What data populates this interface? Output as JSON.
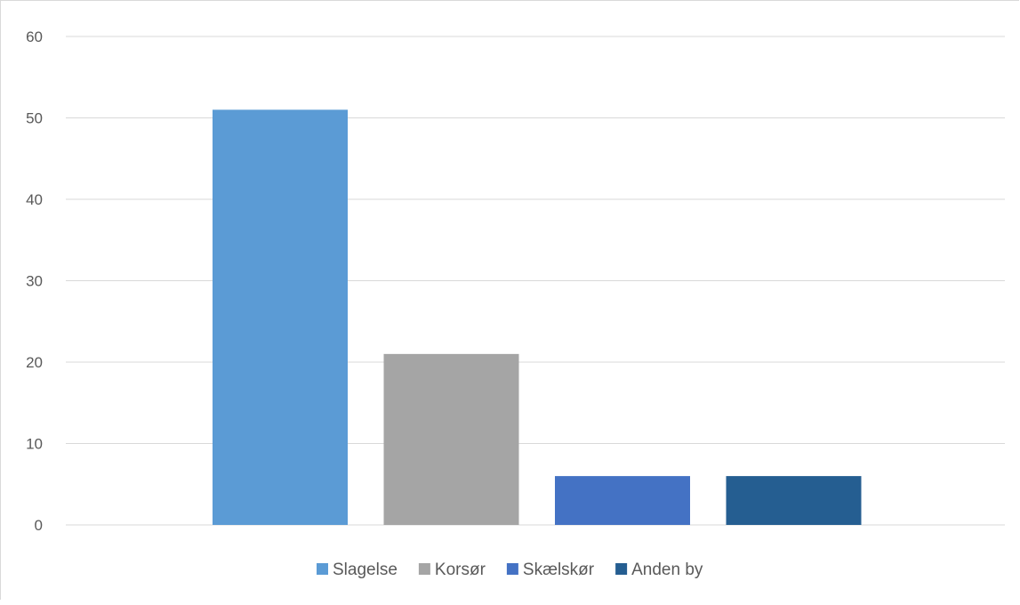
{
  "chart_data": {
    "type": "bar",
    "title": "",
    "xlabel": "",
    "ylabel": "",
    "ylim": [
      0,
      60
    ],
    "yticks": [
      0,
      10,
      20,
      30,
      40,
      50,
      60
    ],
    "grid": true,
    "legend_position": "bottom",
    "series": [
      {
        "name": "Slagelse",
        "value": 51,
        "color": "#5b9bd5"
      },
      {
        "name": "Korsør",
        "value": 21,
        "color": "#a5a5a5"
      },
      {
        "name": "Skælskør",
        "value": 6,
        "color": "#4472c4"
      },
      {
        "name": "Anden by",
        "value": 6,
        "color": "#255e91"
      }
    ]
  }
}
